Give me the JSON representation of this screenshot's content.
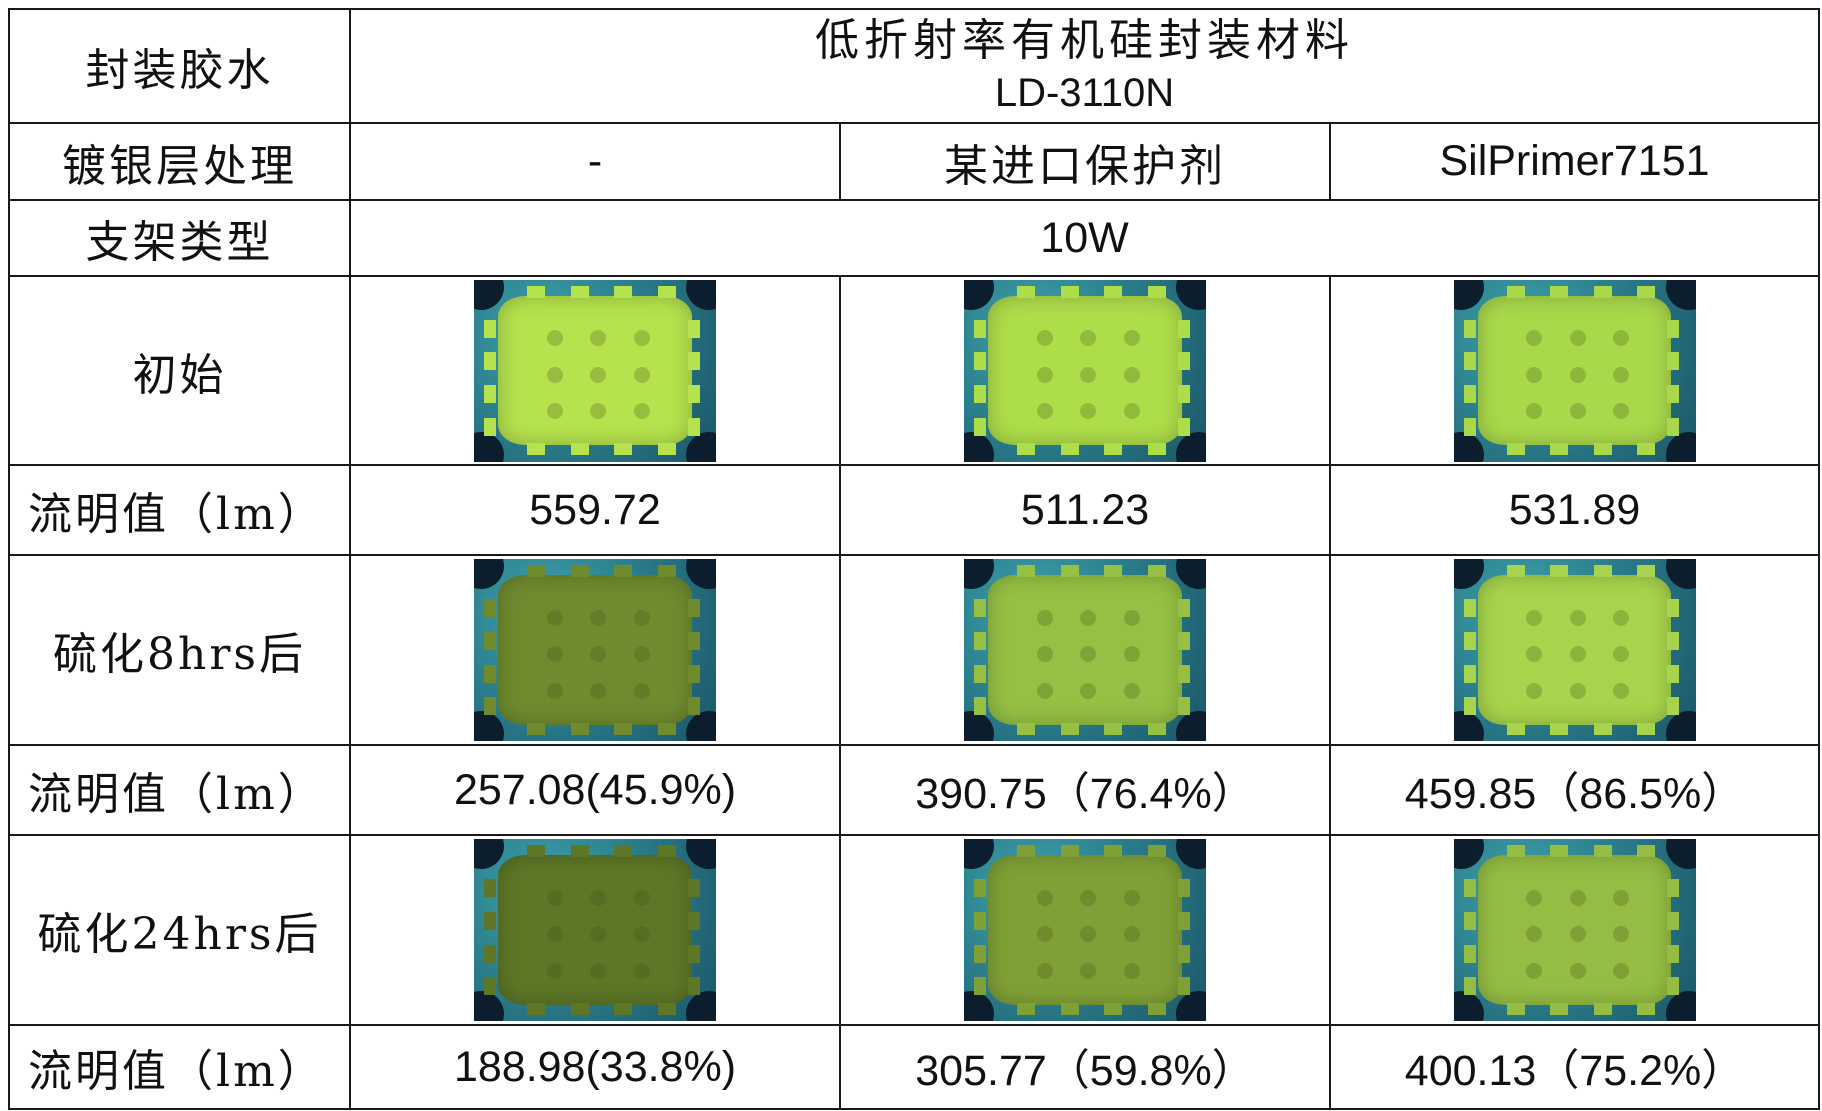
{
  "table": {
    "header_label": "封装胶水",
    "material_name": "低折射率有机硅封装材料",
    "material_code": "LD-3110N",
    "silver_label": "镀银层处理",
    "treatments": [
      "-",
      "某进口保护剂",
      "SilPrimer7151"
    ],
    "bracket_label": "支架类型",
    "bracket_value": "10W",
    "initial_label": "初始",
    "lumen_label": "流明值（lm）",
    "initial_lumens": [
      "559.72",
      "511.23",
      "531.89"
    ],
    "sulf8_label": "硫化8hrs后",
    "sulf8_lumens": [
      "257.08(45.9%)",
      "390.75（76.4%）",
      "459.85（86.5%）"
    ],
    "sulf24_label": "硫化24hrs后",
    "sulf24_lumens": [
      "188.98(33.8%)",
      "305.77（59.8%）",
      "400.13（75.2%）"
    ]
  },
  "photo_colors": {
    "initial": [
      "#b5e24d",
      "#aedd4a",
      "#a9d84b"
    ],
    "sulf8": [
      "#6f8b2e",
      "#95c043",
      "#a7d44c"
    ],
    "sulf24": [
      "#5d7727",
      "#7fa036",
      "#95bd43"
    ]
  }
}
